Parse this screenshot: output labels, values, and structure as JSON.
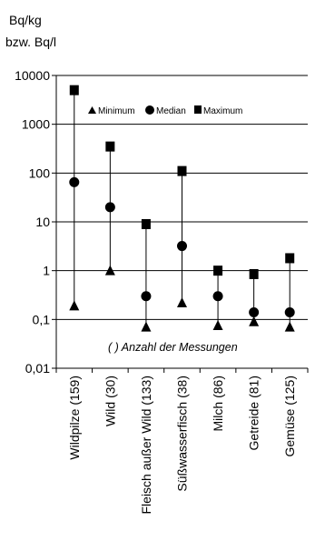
{
  "chart_data": {
    "type": "scatter",
    "title": "",
    "ylabel": [
      "Bq/kg",
      "bzw. Bq/l"
    ],
    "xlabel": "",
    "y_scale": "log",
    "ylim": [
      0.01,
      10000
    ],
    "y_ticks": [
      10000,
      1000,
      100,
      10,
      1,
      0.1,
      0.01
    ],
    "y_tick_labels": [
      "10000",
      "1000",
      "100",
      "10",
      "1",
      "0,1",
      "0,01"
    ],
    "grid": true,
    "legend_position": "top",
    "categories": [
      "Wildpilze (159)",
      "Wild (30)",
      "Fleisch außer Wild (133)",
      "Süßwasserfisch (38)",
      "Milch (86)",
      "Getreide (81)",
      "Gemüse (125)"
    ],
    "series": [
      {
        "name": "Minimum",
        "marker": "triangle",
        "values": [
          0.19,
          1.0,
          0.07,
          0.22,
          0.075,
          0.09,
          0.07
        ]
      },
      {
        "name": "Median",
        "marker": "circle",
        "values": [
          65,
          20,
          0.3,
          3.2,
          0.3,
          0.14,
          0.14
        ]
      },
      {
        "name": "Maximum",
        "marker": "square",
        "values": [
          5000,
          350,
          9,
          110,
          1.0,
          0.85,
          1.8
        ]
      }
    ],
    "annotation": "( ) Anzahl der Messungen"
  }
}
